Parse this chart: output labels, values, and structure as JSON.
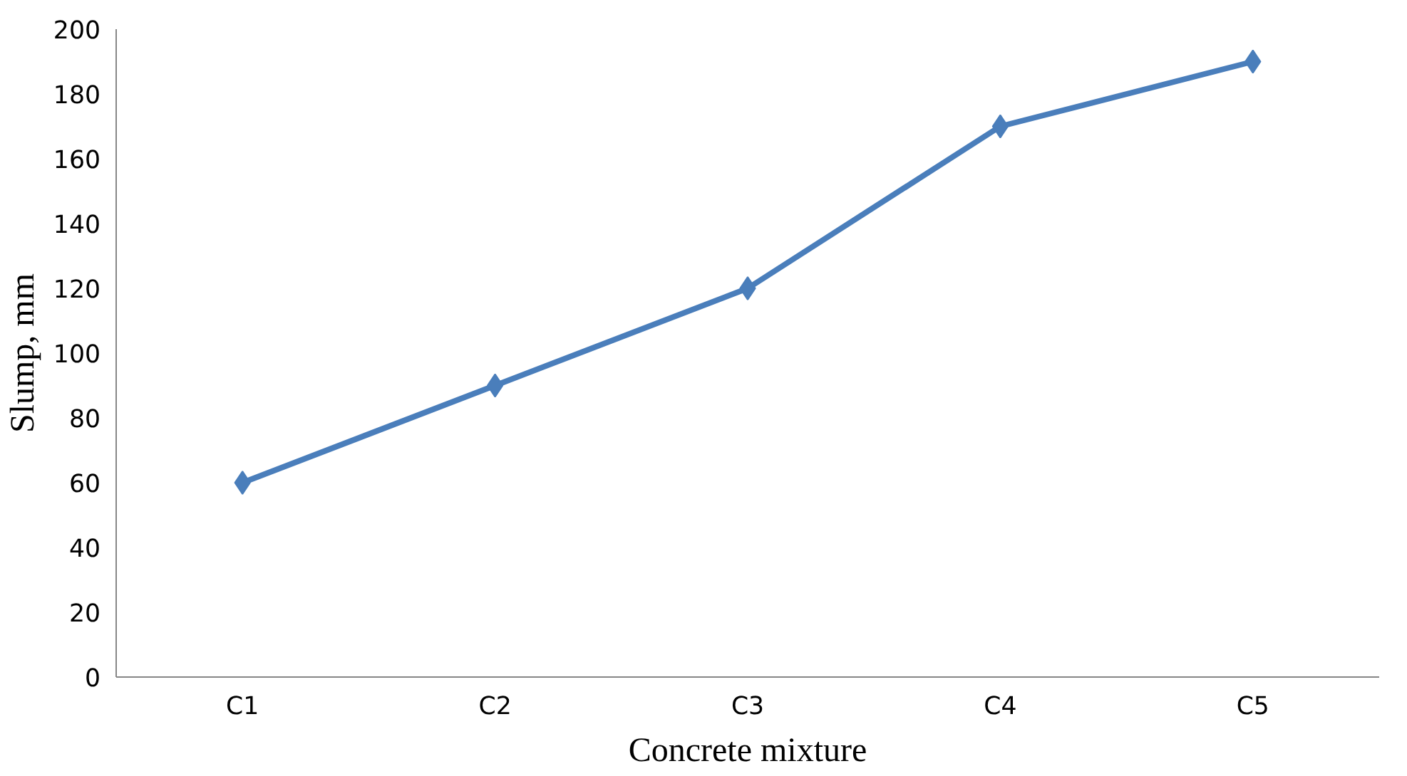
{
  "chart_data": {
    "type": "line",
    "xlabel": "Concrete mixture",
    "ylabel": "Slump, mm",
    "categories": [
      "C1",
      "C2",
      "C3",
      "C4",
      "C5"
    ],
    "series": [
      {
        "color": "#4a7ebb",
        "values": [
          60,
          90,
          120,
          170,
          190
        ]
      }
    ],
    "ylim": [
      0,
      200
    ],
    "yticks": [
      0,
      20,
      40,
      60,
      80,
      100,
      120,
      140,
      160,
      180,
      200
    ],
    "grid": false,
    "marker": "diamond",
    "line_style": "solid"
  }
}
